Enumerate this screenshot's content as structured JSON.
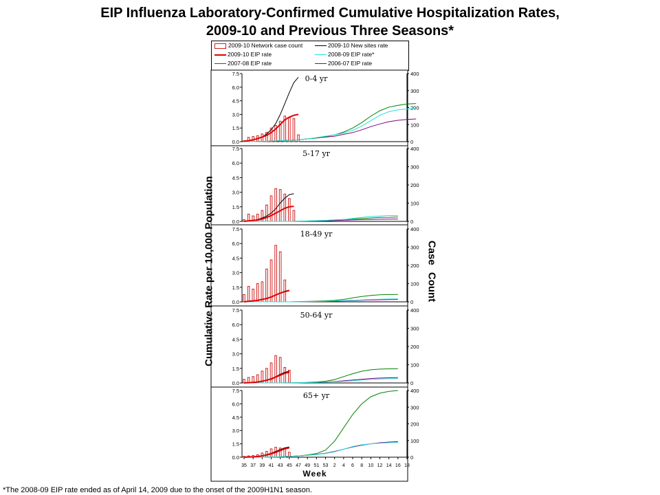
{
  "title_line1": "EIP Influenza Laboratory-Confirmed Cumulative Hospitalization Rates,",
  "title_line2": "2009-10 and Previous Three Seasons*",
  "legend": [
    {
      "label": "2009-10 Network case count",
      "kind": "bar",
      "color": "#d02020"
    },
    {
      "label": "2009-10 New sites rate",
      "kind": "line",
      "color": "#000000"
    },
    {
      "label": "2009-10 EIP rate",
      "kind": "line",
      "color": "#e00000"
    },
    {
      "label": "2008-09 EIP rate*",
      "kind": "line",
      "color": "#20e0e0"
    },
    {
      "label": "2007-08 EIP rate",
      "kind": "line",
      "color": "#008000"
    },
    {
      "label": "2006-07 EIP rate",
      "kind": "line",
      "color": "#800080"
    }
  ],
  "ylabel_left": "Cumulative Rate per 10,000 Population",
  "ylabel_right": "Case Count",
  "xlabel": "Week",
  "footnote": "*The 2008-09 EIP rate ended as of April 14, 2009 due to the onset of the 2009H1N1 season.",
  "chart_data": {
    "type": "bar+line",
    "x_tick_labels": [
      "35",
      "37",
      "39",
      "41",
      "43",
      "45",
      "47",
      "49",
      "51",
      "53",
      "2",
      "4",
      "6",
      "8",
      "10",
      "12",
      "14",
      "16",
      "18"
    ],
    "left_axis": {
      "ticks": [
        "0.0",
        "1.5",
        "3.0",
        "4.5",
        "6.0",
        "7.5"
      ],
      "ylim": [
        0,
        7.5
      ]
    },
    "right_axis": {
      "ticks": [
        "0",
        "100",
        "200",
        "300",
        "400"
      ],
      "ylim": [
        0,
        400
      ]
    },
    "panels": [
      {
        "label": "0-4 yr",
        "bars": [
          5,
          25,
          30,
          35,
          45,
          55,
          80,
          95,
          120,
          150,
          140,
          135,
          40
        ],
        "series": {
          "new_sites": [
            0.05,
            0.1,
            0.2,
            0.3,
            0.5,
            0.85,
            1.3,
            2.0,
            3.0,
            4.2,
            5.4,
            6.5,
            7.1
          ],
          "eip_2009": [
            0.05,
            0.1,
            0.2,
            0.35,
            0.5,
            0.7,
            1.0,
            1.4,
            1.9,
            2.4,
            2.7,
            2.9,
            3.0
          ],
          "eip_2008": [
            0,
            0,
            0.02,
            0.05,
            0.1,
            0.15,
            0.2,
            0.3,
            0.45,
            0.6,
            0.75,
            0.95,
            1.25,
            1.7,
            2.3,
            2.9,
            3.3,
            3.5,
            3.6,
            3.65
          ],
          "eip_2007": [
            0,
            0,
            0.02,
            0.05,
            0.1,
            0.15,
            0.2,
            0.3,
            0.4,
            0.55,
            0.75,
            1.05,
            1.5,
            2.1,
            2.8,
            3.4,
            3.8,
            4.0,
            4.15,
            4.2
          ],
          "eip_2006": [
            0,
            0,
            0.02,
            0.05,
            0.1,
            0.15,
            0.2,
            0.3,
            0.4,
            0.5,
            0.6,
            0.8,
            1.0,
            1.3,
            1.65,
            1.95,
            2.2,
            2.35,
            2.45,
            2.5
          ]
        }
      },
      {
        "label": "5-17 yr",
        "bars": [
          10,
          40,
          30,
          40,
          60,
          90,
          140,
          180,
          175,
          150,
          125,
          60
        ],
        "series": {
          "new_sites": [
            0.0,
            0.05,
            0.1,
            0.2,
            0.35,
            0.55,
            0.85,
            1.3,
            1.9,
            2.4,
            2.75,
            2.85
          ],
          "eip_2009": [
            0.0,
            0.05,
            0.1,
            0.15,
            0.25,
            0.4,
            0.6,
            0.85,
            1.1,
            1.35,
            1.5,
            1.55
          ],
          "eip_2008": [
            0,
            0,
            0,
            0,
            0,
            0,
            0.02,
            0.04,
            0.07,
            0.1,
            0.15,
            0.2,
            0.3,
            0.4,
            0.5,
            0.55,
            0.6,
            0.6
          ],
          "eip_2007": [
            0,
            0,
            0,
            0,
            0,
            0,
            0.02,
            0.04,
            0.07,
            0.1,
            0.15,
            0.2,
            0.25,
            0.3,
            0.35,
            0.4,
            0.42,
            0.45
          ],
          "eip_2006": [
            0,
            0,
            0,
            0,
            0,
            0,
            0.01,
            0.02,
            0.04,
            0.06,
            0.09,
            0.12,
            0.15,
            0.18,
            0.2,
            0.22,
            0.23,
            0.24
          ]
        }
      },
      {
        "label": "18-49 yr",
        "bars": [
          40,
          85,
          70,
          100,
          110,
          180,
          230,
          310,
          275,
          120
        ],
        "series": {
          "new_sites": [
            0.0,
            0.05,
            0.1,
            0.15,
            0.25,
            0.35,
            0.5,
            0.7,
            0.9,
            1.1,
            1.2
          ],
          "eip_2009": [
            0.0,
            0.05,
            0.1,
            0.15,
            0.25,
            0.35,
            0.5,
            0.7,
            0.9,
            1.05,
            1.15
          ],
          "eip_2008": [
            0,
            0,
            0,
            0,
            0,
            0,
            0.01,
            0.02,
            0.04,
            0.06,
            0.09,
            0.12,
            0.16,
            0.2,
            0.24,
            0.27,
            0.29,
            0.3
          ],
          "eip_2007": [
            0,
            0,
            0,
            0,
            0,
            0,
            0.02,
            0.04,
            0.07,
            0.1,
            0.15,
            0.25,
            0.4,
            0.55,
            0.65,
            0.72,
            0.75,
            0.76
          ],
          "eip_2006": [
            0,
            0,
            0,
            0,
            0,
            0,
            0.01,
            0.02,
            0.03,
            0.05,
            0.07,
            0.1,
            0.13,
            0.16,
            0.19,
            0.21,
            0.23,
            0.24
          ]
        }
      },
      {
        "label": "50-64 yr",
        "bars": [
          20,
          30,
          35,
          45,
          65,
          80,
          110,
          150,
          140,
          85,
          70
        ],
        "series": {
          "new_sites": [
            0.0,
            0.03,
            0.06,
            0.1,
            0.18,
            0.3,
            0.45,
            0.65,
            0.9,
            1.1,
            1.2
          ],
          "eip_2009": [
            0.0,
            0.03,
            0.06,
            0.1,
            0.18,
            0.28,
            0.4,
            0.6,
            0.8,
            1.0,
            1.1
          ],
          "eip_2008": [
            0,
            0,
            0,
            0,
            0,
            0.01,
            0.02,
            0.04,
            0.06,
            0.09,
            0.12,
            0.16,
            0.22,
            0.3,
            0.36,
            0.4,
            0.43,
            0.45
          ],
          "eip_2007": [
            0,
            0,
            0,
            0,
            0,
            0.01,
            0.03,
            0.06,
            0.1,
            0.18,
            0.35,
            0.65,
            0.95,
            1.2,
            1.35,
            1.42,
            1.45,
            1.46
          ],
          "eip_2006": [
            0,
            0,
            0,
            0,
            0,
            0.01,
            0.02,
            0.04,
            0.07,
            0.1,
            0.15,
            0.22,
            0.3,
            0.38,
            0.45,
            0.5,
            0.53,
            0.55
          ]
        }
      },
      {
        "label": "65+ yr",
        "bars": [
          5,
          8,
          10,
          15,
          25,
          35,
          50,
          60,
          55,
          55,
          30
        ],
        "series": {
          "new_sites": [
            0.0,
            0.02,
            0.05,
            0.1,
            0.18,
            0.3,
            0.45,
            0.65,
            0.85,
            1.05,
            1.15
          ],
          "eip_2009": [
            0.0,
            0.02,
            0.04,
            0.08,
            0.15,
            0.25,
            0.38,
            0.55,
            0.75,
            0.95,
            1.05
          ],
          "eip_2008": [
            0,
            0,
            0,
            0.02,
            0.05,
            0.1,
            0.15,
            0.22,
            0.3,
            0.42,
            0.6,
            0.9,
            1.2,
            1.4,
            1.5,
            1.58,
            1.63,
            1.66
          ],
          "eip_2007": [
            0,
            0,
            0,
            0.02,
            0.05,
            0.1,
            0.15,
            0.25,
            0.4,
            0.8,
            1.8,
            3.3,
            4.8,
            6.0,
            6.8,
            7.2,
            7.4,
            7.5
          ],
          "eip_2006": [
            0,
            0,
            0,
            0.02,
            0.05,
            0.1,
            0.15,
            0.22,
            0.32,
            0.45,
            0.65,
            0.9,
            1.15,
            1.35,
            1.5,
            1.62,
            1.7,
            1.75
          ]
        }
      }
    ]
  }
}
